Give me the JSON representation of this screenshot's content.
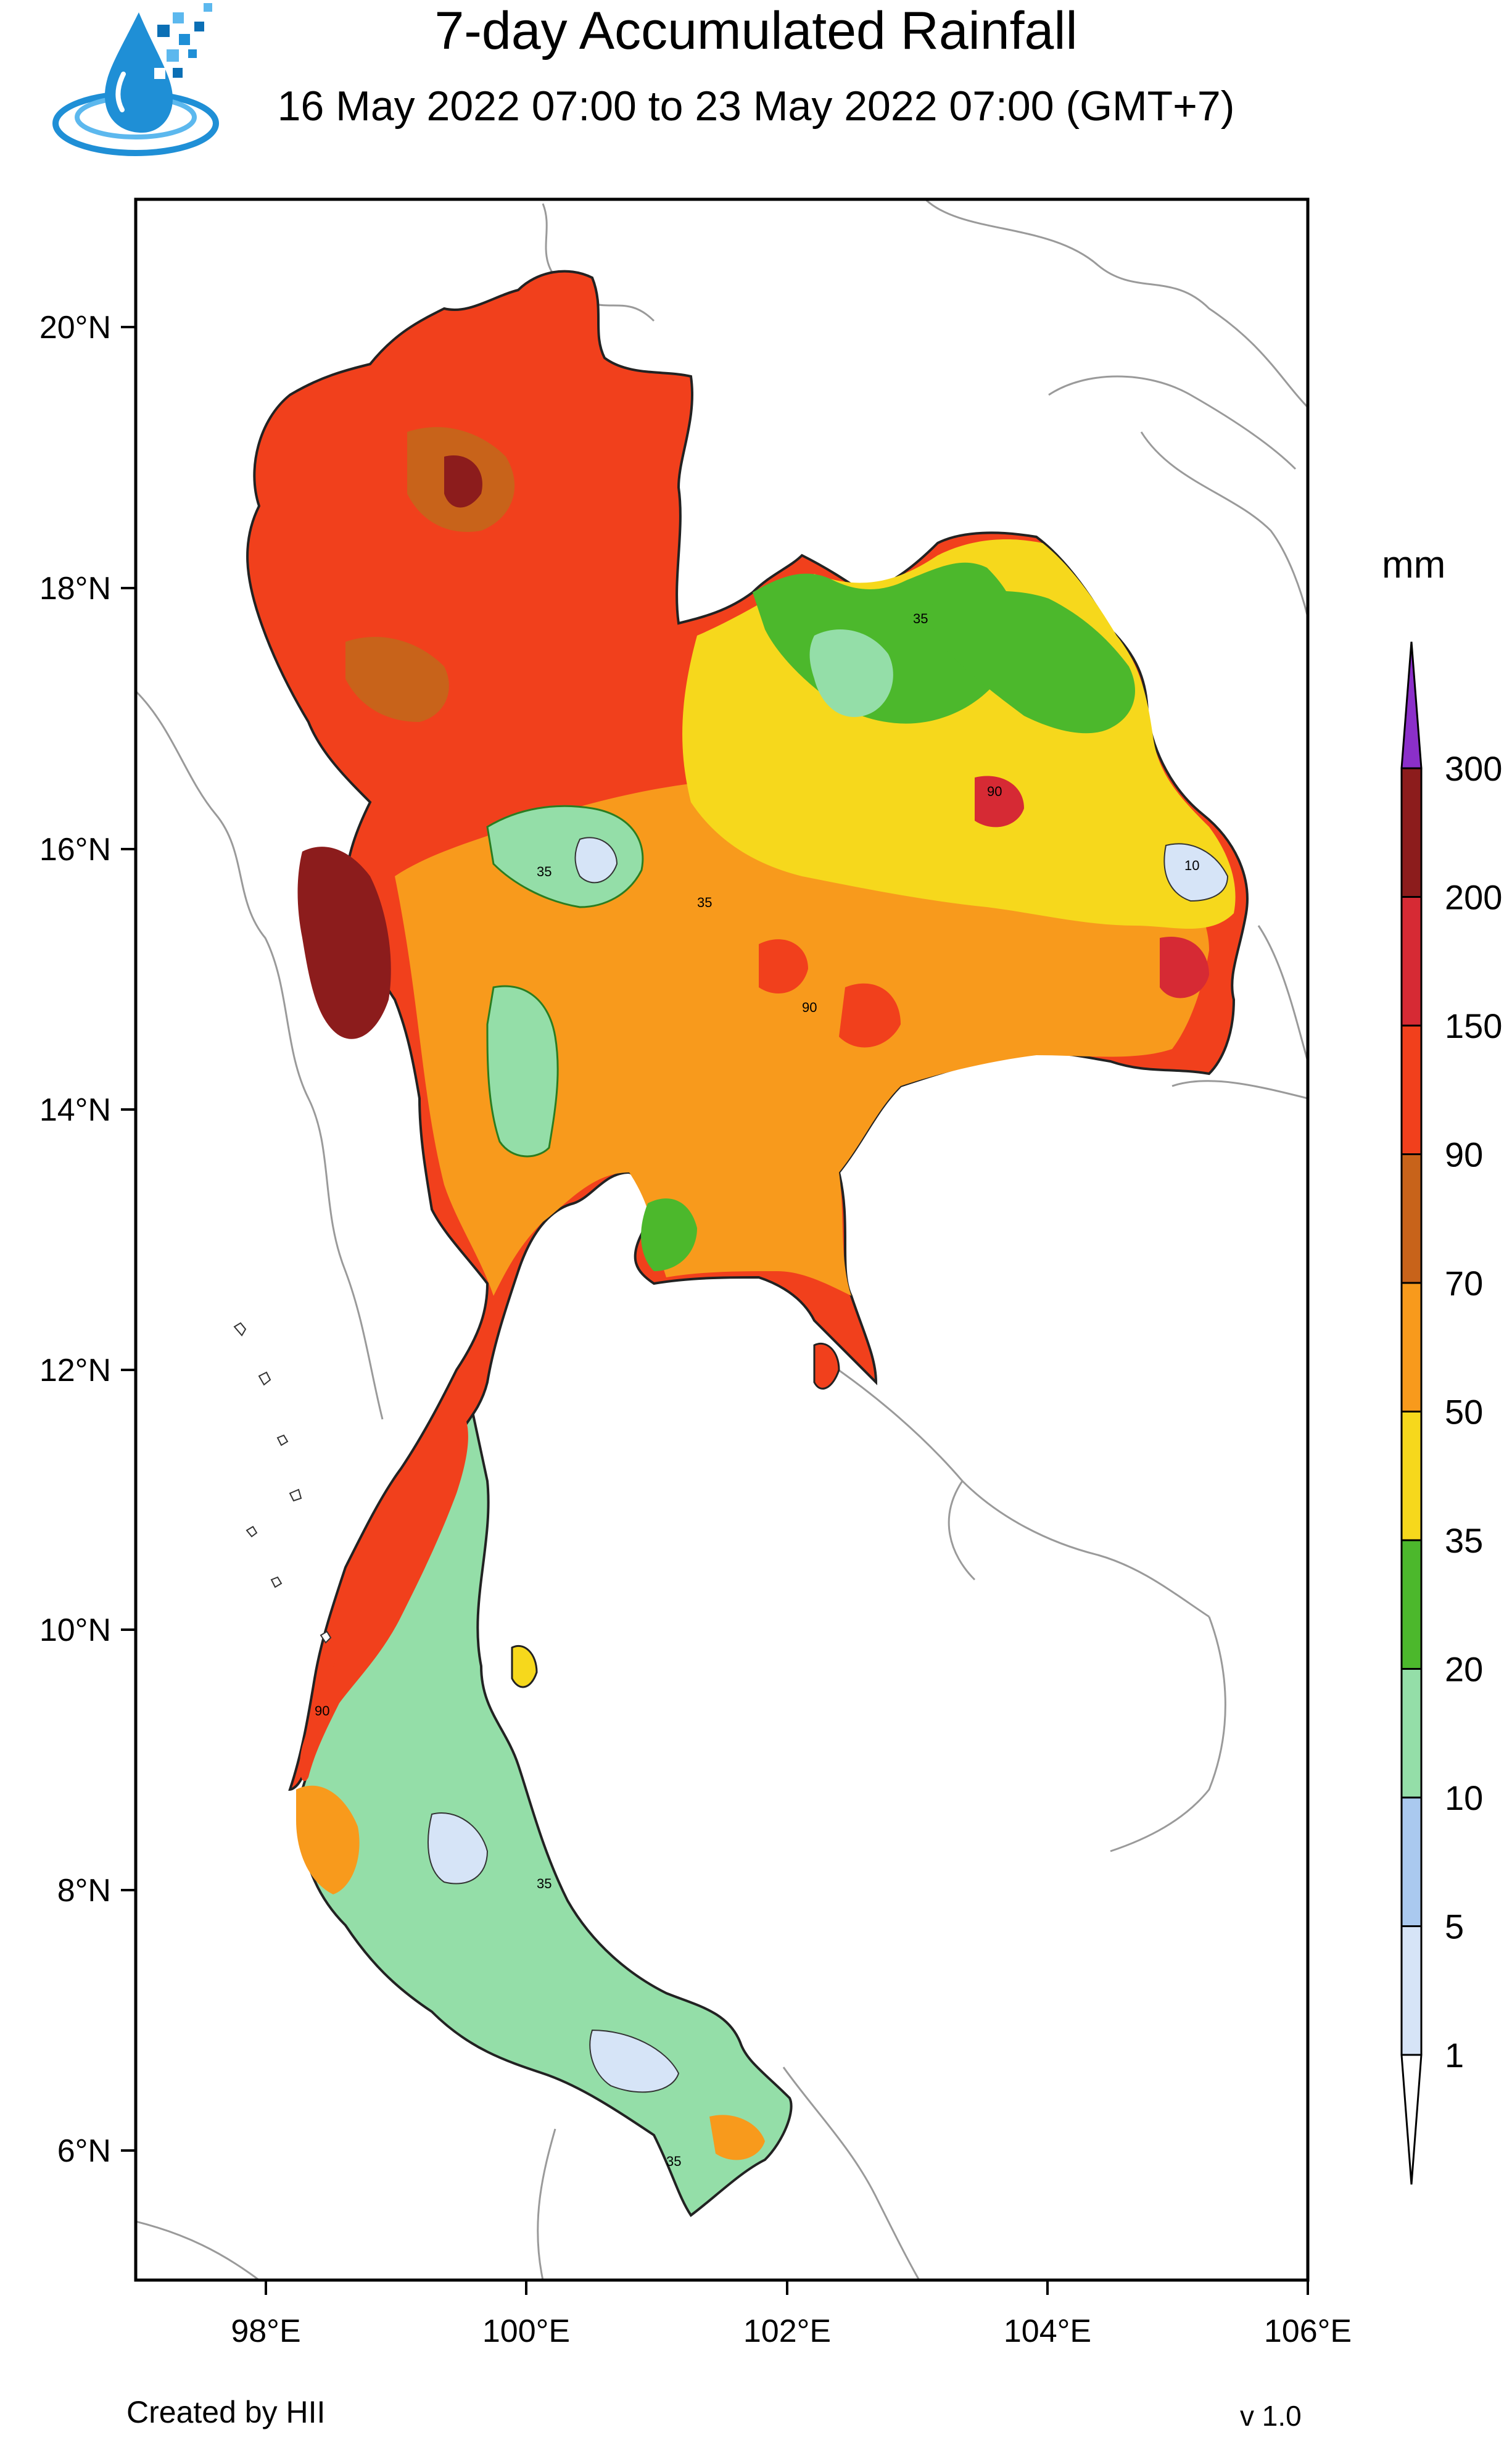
{
  "title": "7-day Accumulated Rainfall",
  "subtitle": "16 May 2022 07:00 to 23 May 2022 07:00 (GMT+7)",
  "logo": {
    "icon": "water-drop-pixel-logo-icon",
    "colors": [
      "#1f8fd6",
      "#5cb8ee",
      "#0b6fb5"
    ]
  },
  "map": {
    "lat_ticks": [
      "20°N",
      "18°N",
      "16°N",
      "14°N",
      "12°N",
      "10°N",
      "8°N",
      "6°N"
    ],
    "lon_ticks": [
      "98°E",
      "100°E",
      "102°E",
      "104°E",
      "106°E"
    ],
    "lon_range": [
      97,
      106
    ],
    "lat_range": [
      5,
      21
    ],
    "contour_labels": [
      "35",
      "90",
      "35",
      "10",
      "90",
      "35",
      "35",
      "90",
      "35"
    ]
  },
  "colorbar": {
    "unit": "mm",
    "levels": [
      "1",
      "5",
      "10",
      "20",
      "35",
      "50",
      "70",
      "90",
      "150",
      "200",
      "300"
    ],
    "colors": [
      "#d6e4f7",
      "#aac9ef",
      "#94dea8",
      "#4cb82c",
      "#f6d81c",
      "#f89a1c",
      "#c8631a",
      "#f1401c",
      "#d62a34",
      "#8c1c1c",
      "#8b2fc9"
    ]
  },
  "footer": {
    "credit": "Created by HII",
    "version": "v 1.0"
  }
}
